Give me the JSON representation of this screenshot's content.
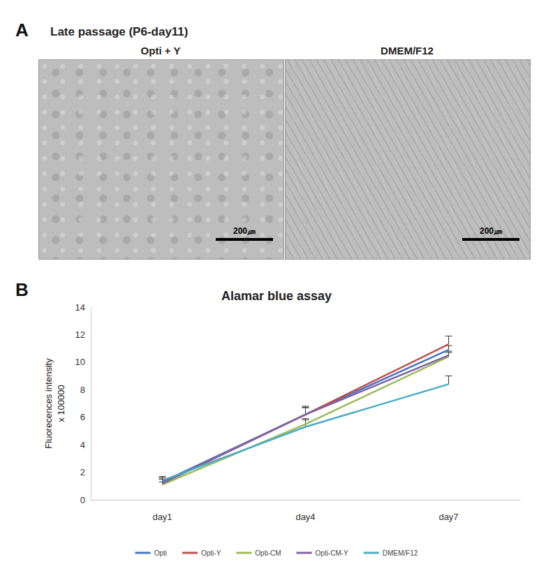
{
  "figure": {
    "panel_a": {
      "letter": "A",
      "title": "Late passage (P6-day11)",
      "images": [
        {
          "title": "Opti + Y",
          "scale_bar": "200㎛"
        },
        {
          "title": "DMEM/F12",
          "scale_bar": "200㎛"
        }
      ]
    },
    "panel_b": {
      "letter": "B"
    }
  },
  "chart_data": {
    "type": "line",
    "title": "Alamar blue assay",
    "ylabel": [
      "Fluorecences intensity",
      "x 100000"
    ],
    "categories": [
      "day1",
      "day4",
      "day7"
    ],
    "series": [
      {
        "name": "Opti",
        "color": "#4472c4",
        "values": [
          1.3,
          6.2,
          10.9
        ],
        "errors": [
          0.3,
          0.5,
          0.3
        ]
      },
      {
        "name": "Opti-Y",
        "color": "#c0504d",
        "values": [
          1.2,
          6.2,
          11.3
        ],
        "errors": [
          0.3,
          0.6,
          0.6
        ]
      },
      {
        "name": "Opti-CM",
        "color": "#9bbb59",
        "values": [
          1.1,
          5.5,
          10.4
        ],
        "errors": [
          0.2,
          0.4,
          0.3
        ]
      },
      {
        "name": "Opti-CM-Y",
        "color": "#8064a2",
        "values": [
          1.2,
          6.2,
          10.5
        ],
        "errors": [
          0.3,
          0.5,
          0.3
        ]
      },
      {
        "name": "DMEM/F12",
        "color": "#4bacc6",
        "values": [
          1.4,
          5.3,
          8.4
        ],
        "errors": [
          0.3,
          0.5,
          0.6
        ]
      }
    ],
    "ylim": [
      0,
      14
    ],
    "yticks": [
      0,
      2,
      4,
      6,
      8,
      10,
      12,
      14
    ],
    "grid": false,
    "legend": "bottom",
    "marker": "none"
  }
}
